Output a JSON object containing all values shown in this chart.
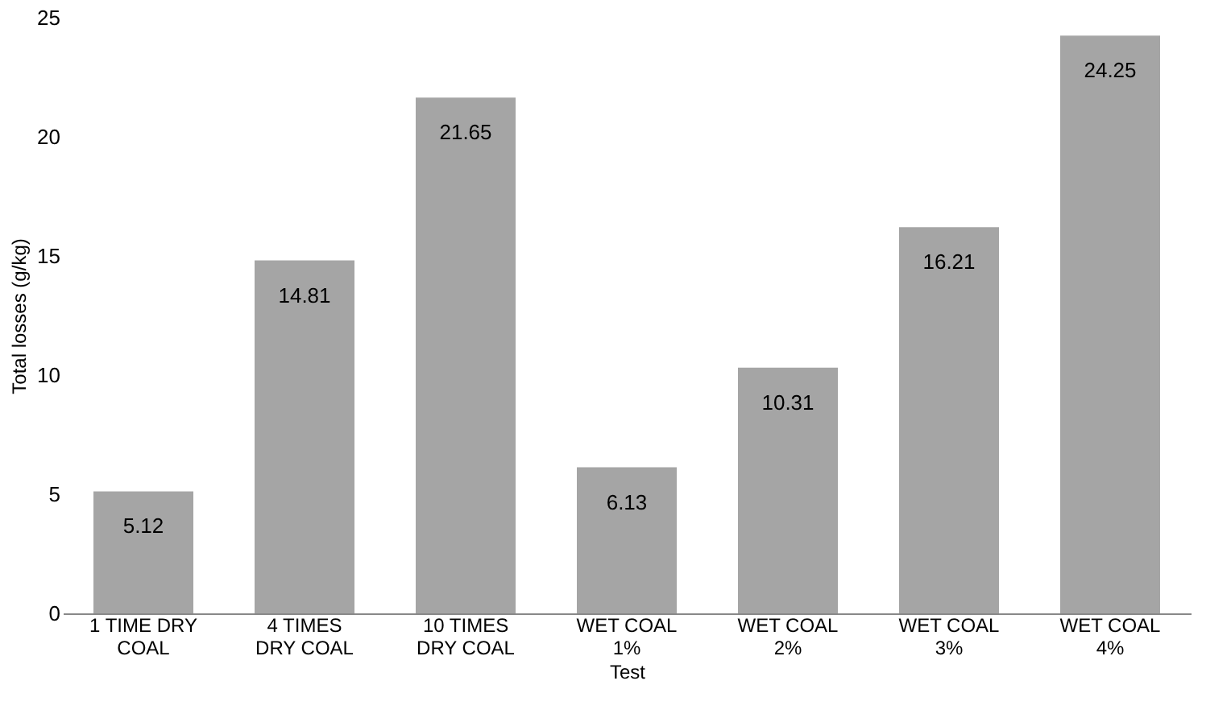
{
  "chart_data": {
    "type": "bar",
    "categories": [
      "1 TIME DRY\nCOAL",
      "4 TIMES\nDRY COAL",
      "10 TIMES\nDRY COAL",
      "WET COAL\n1%",
      "WET COAL\n2%",
      "WET COAL\n3%",
      "WET COAL\n4%"
    ],
    "values": [
      5.12,
      14.81,
      21.65,
      6.13,
      10.31,
      16.21,
      24.25
    ],
    "color": "#a5a5a5",
    "xlabel": "Test",
    "ylabel": "Total losses (g/kg)",
    "ylim": [
      0,
      25
    ],
    "yticks": [
      0,
      5,
      10,
      15,
      20,
      25
    ],
    "data_labels": true,
    "grid": false
  }
}
